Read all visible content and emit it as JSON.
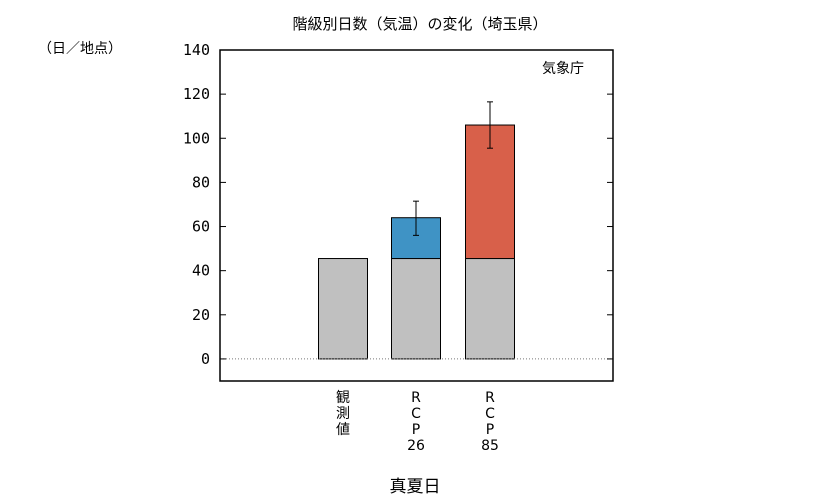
{
  "chart_data": {
    "type": "bar",
    "title": "階級別日数（気温）の変化（埼玉県）",
    "ylabel": "（日／地点）",
    "xlabel": "真夏日",
    "source": "気象庁",
    "ylim": [
      -10,
      140
    ],
    "yticks": [
      0,
      20,
      40,
      60,
      80,
      100,
      120,
      140
    ],
    "grid": false,
    "categories": [
      "観測値",
      "RCP26",
      "RCP85"
    ],
    "category_labels": [
      [
        "観",
        "測",
        "値"
      ],
      [
        "R",
        "C",
        "P",
        "26"
      ],
      [
        "R",
        "C",
        "P",
        "85"
      ]
    ],
    "series": [
      {
        "values": [
          45.5,
          45.5,
          45.5
        ],
        "color": "#c0c0c0"
      },
      {
        "values": [
          0,
          18.5,
          60.5
        ],
        "color": "#3f93c5",
        "color_alt": "#d8604a"
      }
    ],
    "totals": [
      45.5,
      64,
      106
    ],
    "error_bars": [
      null,
      {
        "low": 56,
        "high": 71.5
      },
      {
        "low": 95.5,
        "high": 116.5
      }
    ]
  }
}
